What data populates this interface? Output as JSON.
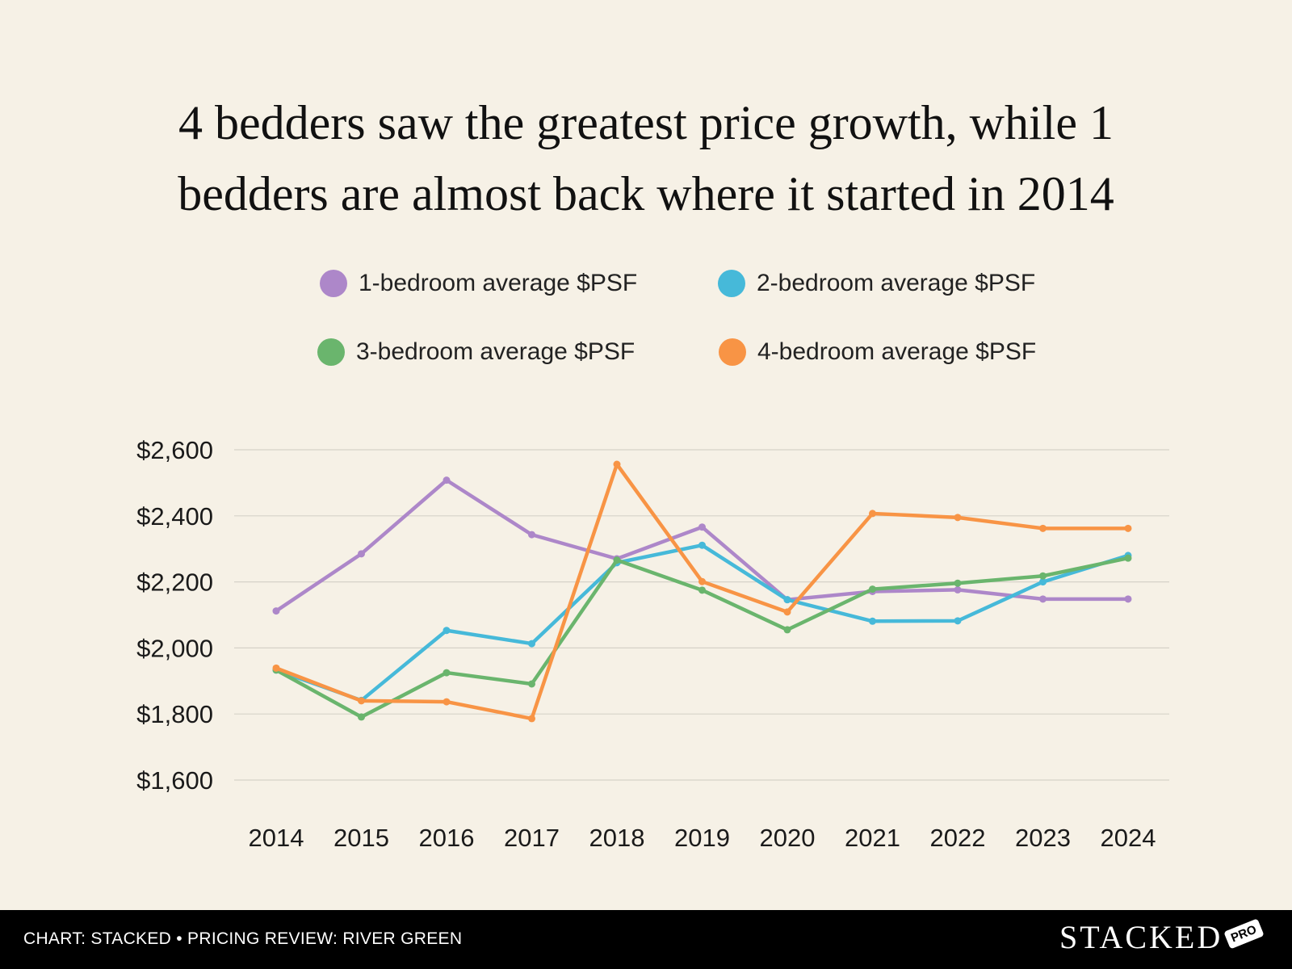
{
  "chart_data": {
    "type": "line",
    "title": [
      "4 bedders saw the greatest price growth, while 1",
      "bedders are almost back where it started in 2014"
    ],
    "xlabel": "",
    "ylabel": "",
    "categories": [
      "2014",
      "2015",
      "2016",
      "2017",
      "2018",
      "2019",
      "2020",
      "2021",
      "2022",
      "2023",
      "2024"
    ],
    "ylim": [
      1600,
      2600
    ],
    "yticks": [
      "$1,600",
      "$1,800",
      "$2,000",
      "$2,200",
      "$2,400",
      "$2,600"
    ],
    "ytick_values": [
      1600,
      1800,
      2000,
      2200,
      2400,
      2600
    ],
    "grid": true,
    "legend_position": "top-center",
    "series": [
      {
        "name": "1-bedroom average $PSF",
        "color": "#ad87c9",
        "values": [
          2112,
          2285,
          2508,
          2343,
          2270,
          2366,
          2146,
          2171,
          2176,
          2148,
          2148
        ]
      },
      {
        "name": "2-bedroom average $PSF",
        "color": "#46b9d9",
        "values": [
          1933,
          1841,
          2053,
          2013,
          2258,
          2311,
          2146,
          2081,
          2082,
          2200,
          2280
        ]
      },
      {
        "name": "3-bedroom average $PSF",
        "color": "#6ab56d",
        "values": [
          1933,
          1791,
          1925,
          1891,
          2266,
          2175,
          2055,
          2178,
          2196,
          2218,
          2272
        ]
      },
      {
        "name": "4-bedroom average $PSF",
        "color": "#f89445",
        "values": [
          1939,
          1840,
          1837,
          1786,
          2556,
          2201,
          2109,
          2407,
          2395,
          2362,
          2362
        ]
      }
    ]
  },
  "footer": {
    "credit": "CHART: STACKED • PRICING REVIEW: RIVER GREEN",
    "brand": "STACKED",
    "badge": "PRO"
  }
}
